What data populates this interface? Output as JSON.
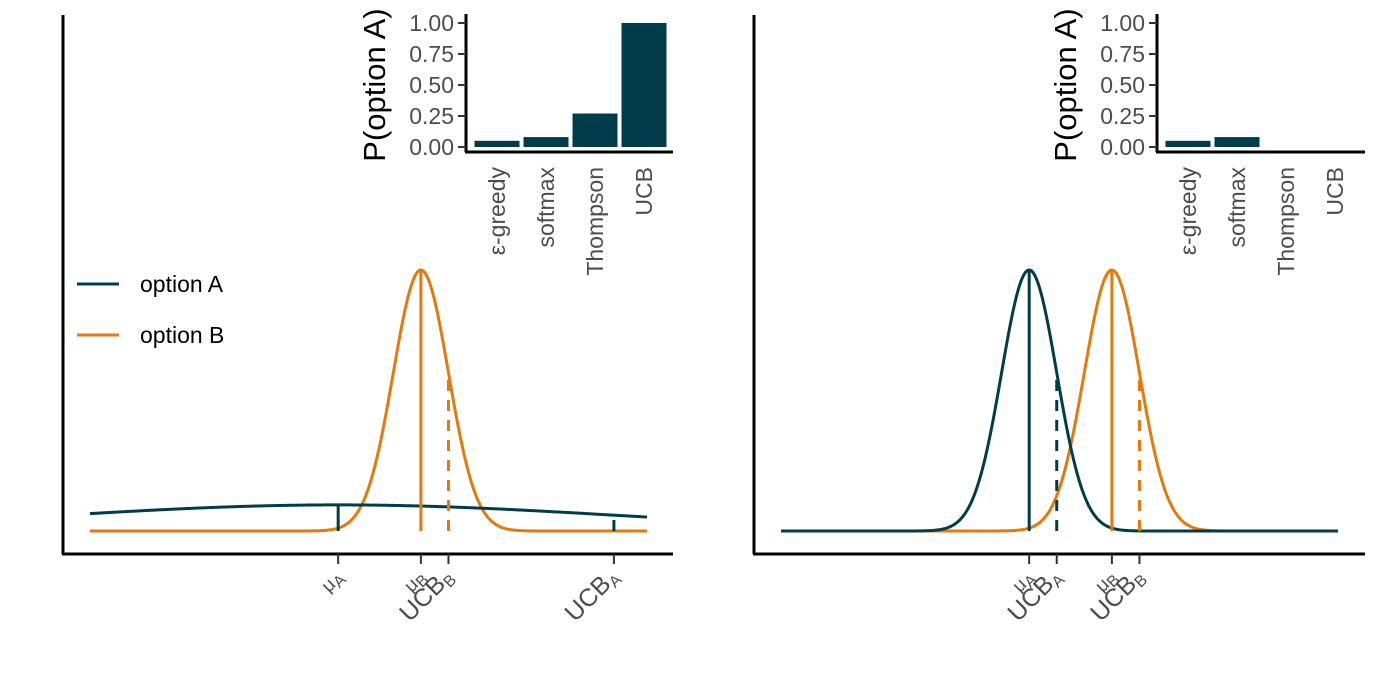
{
  "colors": {
    "option_a": "#003c4a",
    "option_b": "#e47a0b",
    "axis": "#000000",
    "tick_text": "#4d4d4d"
  },
  "legend": {
    "items": [
      {
        "label": "option A",
        "color": "#003c4a"
      },
      {
        "label": "option B",
        "color": "#e47a0b"
      }
    ]
  },
  "chart_data": [
    {
      "type": "line",
      "x_tick_labels": [
        "μA",
        "μB",
        "UCBB",
        "UCBA"
      ],
      "series": [
        {
          "name": "option A",
          "mean": 0.5,
          "sd": 1.0
        },
        {
          "name": "option B",
          "mean": 0.8,
          "sd": 0.1
        }
      ],
      "markers": [
        {
          "series": "option A",
          "kind": "mean",
          "x": 0.5
        },
        {
          "series": "option A",
          "kind": "ucb",
          "x": 1.5
        },
        {
          "series": "option B",
          "kind": "mean",
          "x": 0.8
        },
        {
          "series": "option B",
          "kind": "ucb",
          "x": 0.9
        }
      ],
      "xlim": [
        -0.4,
        1.62
      ],
      "legend_position": "left",
      "inset": {
        "type": "bar",
        "ylabel": "P(option A)",
        "categories": [
          "ε-greedy",
          "softmax",
          "Thompson",
          "UCB"
        ],
        "values": [
          0.05,
          0.08,
          0.27,
          1.0
        ],
        "ylim": [
          0,
          1
        ],
        "yticks": [
          "0.00",
          "0.25",
          "0.50",
          "0.75",
          "1.00"
        ]
      }
    },
    {
      "type": "line",
      "x_tick_labels": [
        "μA",
        "UCBA",
        "μB",
        "UCBB"
      ],
      "series": [
        {
          "name": "option A",
          "mean": 0.5,
          "sd": 0.1
        },
        {
          "name": "option B",
          "mean": 0.8,
          "sd": 0.1
        }
      ],
      "markers": [
        {
          "series": "option A",
          "kind": "mean",
          "x": 0.5
        },
        {
          "series": "option A",
          "kind": "ucb",
          "x": 0.6
        },
        {
          "series": "option B",
          "kind": "mean",
          "x": 0.8
        },
        {
          "series": "option B",
          "kind": "ucb",
          "x": 0.9
        }
      ],
      "xlim": [
        -0.4,
        1.62
      ],
      "inset": {
        "type": "bar",
        "ylabel": "P(option A)",
        "categories": [
          "ε-greedy",
          "softmax",
          "Thompson",
          "UCB"
        ],
        "values": [
          0.05,
          0.08,
          0.0,
          0.0
        ],
        "ylim": [
          0,
          1
        ],
        "yticks": [
          "0.00",
          "0.25",
          "0.50",
          "0.75",
          "1.00"
        ]
      }
    }
  ]
}
